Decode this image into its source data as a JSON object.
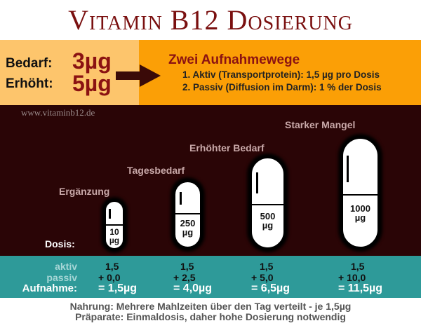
{
  "title": "Vitamin B12 Dosierung",
  "requirement": {
    "bedarf_label": "Bedarf:",
    "bedarf_value": "3µg",
    "erhoeht_label": "Erhöht:",
    "erhoeht_value": "5µg"
  },
  "pathways": {
    "heading": "Zwei Aufnahmewege",
    "items": [
      "1. Aktiv (Transportprotein): 1,5 µg pro Dosis",
      "2. Passiv (Diffusion im Darm): 1 % der Dosis"
    ]
  },
  "watermark": "www.vitaminb12.de",
  "dose_label": "Dosis:",
  "categories": [
    {
      "label": "Ergänzung",
      "dose": "10",
      "unit": "µg",
      "aktiv": "1,5",
      "passiv": "+ 0,0",
      "total": "= 1,5µg"
    },
    {
      "label": "Tagesbedarf",
      "dose": "250",
      "unit": "µg",
      "aktiv": "1,5",
      "passiv": "+ 2,5",
      "total": "= 4,0µg"
    },
    {
      "label": "Erhöhter Bedarf",
      "dose": "500",
      "unit": "µg",
      "aktiv": "1,5",
      "passiv": "+ 5,0",
      "total": "= 6,5µg"
    },
    {
      "label": "Starker Mangel",
      "dose": "1000",
      "unit": "µg",
      "aktiv": "1,5",
      "passiv": "+ 10,0",
      "total": "= 11,5µg"
    }
  ],
  "row_labels": {
    "aktiv": "aktiv",
    "passiv": "passiv",
    "aufnahme": "Aufnahme:"
  },
  "footer": [
    "Nahrung: Mehrere Mahlzeiten über den Tag verteilt - je 1,5µg",
    "Präparate: Einmaldosis, daher hohe Dosierung notwendig"
  ],
  "colors": {
    "title": "#7a1010",
    "peach": "#fdc56c",
    "orange": "#fb9f06",
    "maroon": "#2a0506",
    "teal": "#2e9a99"
  }
}
